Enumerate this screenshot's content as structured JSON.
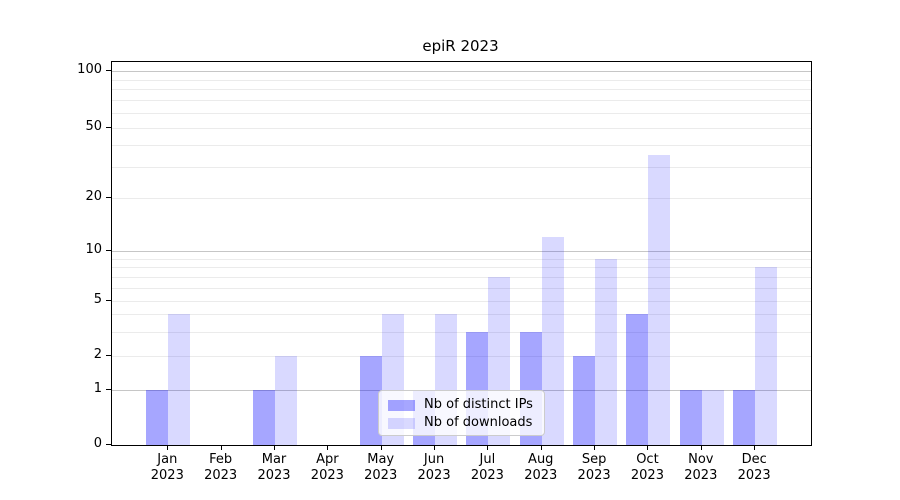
{
  "title": "epiR 2023",
  "chart_data": {
    "type": "bar",
    "title": "epiR 2023",
    "year": "2023",
    "categories": [
      "Jan",
      "Feb",
      "Mar",
      "Apr",
      "May",
      "Jun",
      "Jul",
      "Aug",
      "Sep",
      "Oct",
      "Nov",
      "Dec"
    ],
    "series": [
      {
        "name": "Nb of distinct IPs",
        "color": "#0000ff59",
        "color_on_white": "#a6a6ff",
        "values": [
          1,
          0,
          1,
          0,
          2,
          1,
          3,
          3,
          2,
          4,
          1,
          1
        ]
      },
      {
        "name": "Nb of downloads",
        "color": "#0000ff26",
        "color_on_white": "#d9d9ff",
        "values": [
          4,
          0,
          2,
          0,
          4,
          4,
          7,
          12,
          9,
          35,
          1,
          8
        ]
      }
    ],
    "xlabel": "",
    "ylabel": "",
    "yscale": "log-like (custom spacing, 0 at baseline)",
    "yticks": [
      0,
      1,
      2,
      5,
      10,
      20,
      50,
      100
    ],
    "ytick_labels": [
      "0",
      "1",
      "2",
      "5",
      "10",
      "20",
      "50",
      "100"
    ],
    "ylim": [
      0,
      112
    ],
    "grid": "horizontal, log minor lines",
    "legend_position": "lower center inside plot"
  },
  "colors": {
    "bar_distinct_ips": "#a6a6ff",
    "bar_downloads": "#d9d9ff",
    "gridline_major": "#c6c6c6",
    "gridline_minor": "#ebebeb",
    "axis": "#000000",
    "legend_border": "#cccccc"
  }
}
